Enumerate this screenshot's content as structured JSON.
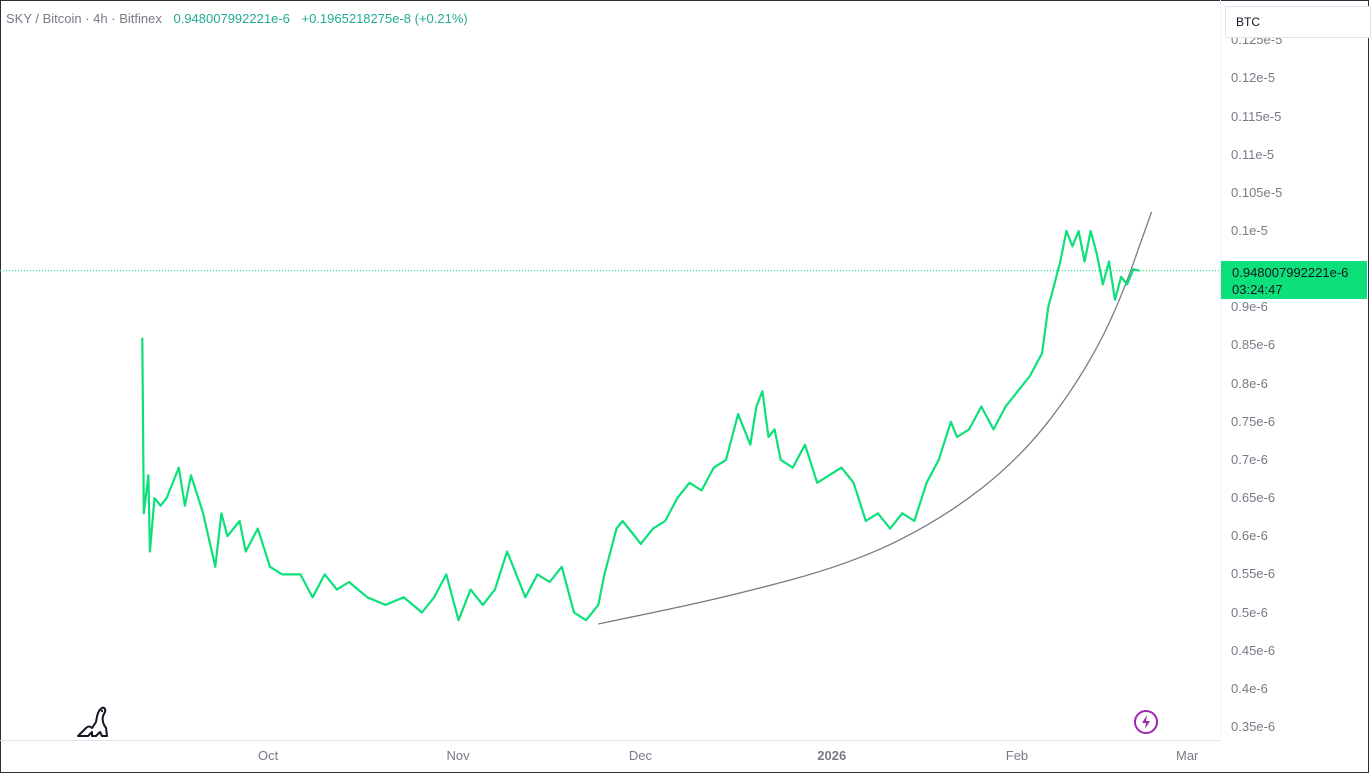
{
  "legend": {
    "symbol": "SKY / Bitcoin · 4h · Bitfinex",
    "value": "0.948007992221e-6",
    "change": "+0.1965218275e-8 (+0.21%)"
  },
  "currency_selector": "BTC",
  "last_price": {
    "value": "0.948007992221e-6",
    "countdown": "03:24:47",
    "color": "#0de07a"
  },
  "colors": {
    "line": "#0de07a",
    "curve": "#787b86"
  },
  "icons": {
    "logo": "dinosaur-logo-icon",
    "bolt": "lightning-icon"
  },
  "chart_data": {
    "type": "line",
    "y_tick_labels": [
      "0.35e-6",
      "0.4e-6",
      "0.45e-6",
      "0.5e-6",
      "0.55e-6",
      "0.6e-6",
      "0.65e-6",
      "0.7e-6",
      "0.75e-6",
      "0.8e-6",
      "0.85e-6",
      "0.9e-6",
      "0.1e-5",
      "0.105e-5",
      "0.11e-5",
      "0.115e-5",
      "0.12e-5",
      "0.125e-5"
    ],
    "y_tick_values": [
      0.35,
      0.4,
      0.45,
      0.5,
      0.55,
      0.6,
      0.65,
      0.7,
      0.75,
      0.8,
      0.85,
      0.9,
      1.0,
      1.05,
      1.1,
      1.15,
      1.2,
      1.25
    ],
    "y_unit_note": "values in 1e-6 BTC",
    "x_tick_labels": [
      "Oct",
      "Nov",
      "Dec",
      "2026",
      "Feb",
      "Mar"
    ],
    "x_tick_dates": [
      "2025-10-01",
      "2025-11-01",
      "2025-12-01",
      "2026-01-01",
      "2026-02-01",
      "2026-03-01"
    ],
    "series": [
      {
        "x": [
          "2025-09-10",
          "2025-09-10",
          "2025-09-11",
          "2025-09-11",
          "2025-09-12",
          "2025-09-13",
          "2025-09-14",
          "2025-09-16",
          "2025-09-17",
          "2025-09-18",
          "2025-09-20",
          "2025-09-22",
          "2025-09-23",
          "2025-09-24",
          "2025-09-26",
          "2025-09-27",
          "2025-09-29",
          "2025-10-01",
          "2025-10-03",
          "2025-10-06",
          "2025-10-08",
          "2025-10-10",
          "2025-10-12",
          "2025-10-14",
          "2025-10-17",
          "2025-10-20",
          "2025-10-23",
          "2025-10-26",
          "2025-10-28",
          "2025-10-30",
          "2025-11-01",
          "2025-11-03",
          "2025-11-05",
          "2025-11-07",
          "2025-11-09",
          "2025-11-11",
          "2025-11-12",
          "2025-11-14",
          "2025-11-16",
          "2025-11-18",
          "2025-11-20",
          "2025-11-22",
          "2025-11-24",
          "2025-11-25",
          "2025-11-26",
          "2025-11-27",
          "2025-11-28",
          "2025-11-30",
          "2025-12-01",
          "2025-12-03",
          "2025-12-05",
          "2025-12-07",
          "2025-12-09",
          "2025-12-11",
          "2025-12-13",
          "2025-12-15",
          "2025-12-17",
          "2025-12-19",
          "2025-12-20",
          "2025-12-21",
          "2025-12-22",
          "2025-12-23",
          "2025-12-24",
          "2025-12-26",
          "2025-12-28",
          "2025-12-30",
          "2026-01-01",
          "2026-01-03",
          "2026-01-05",
          "2026-01-07",
          "2026-01-09",
          "2026-01-11",
          "2026-01-13",
          "2026-01-15",
          "2026-01-17",
          "2026-01-19",
          "2026-01-21",
          "2026-01-22",
          "2026-01-24",
          "2026-01-26",
          "2026-01-28",
          "2026-01-30",
          "2026-02-01",
          "2026-02-03",
          "2026-02-05",
          "2026-02-06",
          "2026-02-07",
          "2026-02-08",
          "2026-02-09",
          "2026-02-10",
          "2026-02-11",
          "2026-02-12",
          "2026-02-13",
          "2026-02-14",
          "2026-02-15",
          "2026-02-16",
          "2026-02-17",
          "2026-02-18",
          "2026-02-19",
          "2026-02-20",
          "2026-02-21"
        ],
        "y": [
          0.86,
          0.63,
          0.68,
          0.58,
          0.65,
          0.64,
          0.65,
          0.69,
          0.64,
          0.68,
          0.63,
          0.56,
          0.63,
          0.6,
          0.62,
          0.58,
          0.61,
          0.56,
          0.55,
          0.55,
          0.52,
          0.55,
          0.53,
          0.54,
          0.52,
          0.51,
          0.52,
          0.5,
          0.52,
          0.55,
          0.49,
          0.53,
          0.51,
          0.53,
          0.58,
          0.54,
          0.52,
          0.55,
          0.54,
          0.56,
          0.5,
          0.49,
          0.51,
          0.55,
          0.58,
          0.61,
          0.62,
          0.6,
          0.59,
          0.61,
          0.62,
          0.65,
          0.67,
          0.66,
          0.69,
          0.7,
          0.76,
          0.72,
          0.77,
          0.79,
          0.73,
          0.74,
          0.7,
          0.69,
          0.72,
          0.67,
          0.68,
          0.69,
          0.67,
          0.62,
          0.63,
          0.61,
          0.63,
          0.62,
          0.67,
          0.7,
          0.75,
          0.73,
          0.74,
          0.77,
          0.74,
          0.77,
          0.79,
          0.81,
          0.84,
          0.9,
          0.93,
          0.96,
          1.0,
          0.98,
          1.0,
          0.96,
          1.0,
          0.97,
          0.93,
          0.96,
          0.91,
          0.94,
          0.93,
          0.95,
          0.948
        ]
      }
    ],
    "curve": {
      "x": [
        "2025-11-24",
        "2025-12-15",
        "2026-01-05",
        "2026-01-20",
        "2026-02-01",
        "2026-02-10",
        "2026-02-17",
        "2026-02-23"
      ],
      "y": [
        0.485,
        0.52,
        0.565,
        0.625,
        0.7,
        0.79,
        0.89,
        1.025
      ]
    }
  }
}
